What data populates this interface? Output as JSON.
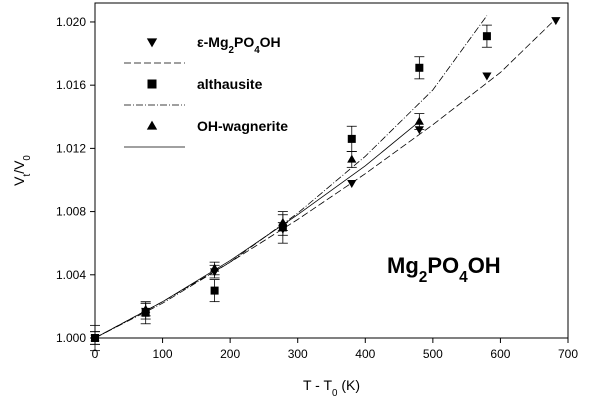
{
  "chart_data": {
    "type": "scatter",
    "xlabel": {
      "main": "T - T",
      "sub": "0",
      "tail": " (K)"
    },
    "ylabel": {
      "main": "V",
      "sub": "t",
      "tail": "/V",
      "sub2": "0"
    },
    "xlim": [
      0,
      700
    ],
    "ylim": [
      1.0,
      1.0212
    ],
    "x_ticks": [
      0,
      100,
      200,
      300,
      400,
      500,
      600,
      700
    ],
    "y_ticks": [
      1.0,
      1.004,
      1.008,
      1.012,
      1.016,
      1.02
    ],
    "y_tick_labels": [
      "1.000",
      "1.004",
      "1.008",
      "1.012",
      "1.016",
      "1.020"
    ],
    "grid": false,
    "legend_position": "top-left",
    "annotation": {
      "parts": [
        {
          "text": "Mg",
          "sub": false
        },
        {
          "text": "2",
          "sub": true
        },
        {
          "text": "PO",
          "sub": false
        },
        {
          "text": "4",
          "sub": true
        },
        {
          "text": "OH",
          "sub": false
        }
      ]
    },
    "series": [
      {
        "key": "epsilon",
        "legend_parts": [
          {
            "text": "ε-Mg",
            "sub": false
          },
          {
            "text": "2",
            "sub": true
          },
          {
            "text": "PO",
            "sub": false
          },
          {
            "text": "4",
            "sub": true
          },
          {
            "text": "OH",
            "sub": false
          }
        ],
        "marker": "triangle-down",
        "line_style": "longdash",
        "points": [
          {
            "x": 0,
            "y": 1.0,
            "err": 0.0008
          },
          {
            "x": 75,
            "y": 1.0017,
            "err": 0.0005
          },
          {
            "x": 177,
            "y": 1.0042,
            "err": 0.0004
          },
          {
            "x": 278,
            "y": 1.0069,
            "err": 0.0004
          },
          {
            "x": 380,
            "y": 1.0098,
            "err": 0.0
          },
          {
            "x": 480,
            "y": 1.0132,
            "err": 0.0
          },
          {
            "x": 580,
            "y": 1.0166,
            "err": 0.0
          },
          {
            "x": 682,
            "y": 1.0201,
            "err": 0.0
          }
        ],
        "fit": [
          [
            0,
            1.0
          ],
          [
            100,
            1.0023
          ],
          [
            200,
            1.0048
          ],
          [
            300,
            1.0075
          ],
          [
            400,
            1.0104
          ],
          [
            500,
            1.0135
          ],
          [
            600,
            1.0168
          ],
          [
            682,
            1.0202
          ]
        ]
      },
      {
        "key": "althausite",
        "legend_parts": [
          {
            "text": "althausite",
            "sub": false
          }
        ],
        "marker": "square",
        "line_style": "dashdot",
        "points": [
          {
            "x": 0,
            "y": 1.0,
            "err": 0.0004
          },
          {
            "x": 75,
            "y": 1.0016,
            "err": 0.0007
          },
          {
            "x": 177,
            "y": 1.003,
            "err": 0.0007
          },
          {
            "x": 278,
            "y": 1.007,
            "err": 0.001
          },
          {
            "x": 380,
            "y": 1.0126,
            "err": 0.0008
          },
          {
            "x": 480,
            "y": 1.0171,
            "err": 0.0007
          },
          {
            "x": 580,
            "y": 1.0191,
            "err": 0.0007
          }
        ],
        "fit": [
          [
            0,
            1.0
          ],
          [
            100,
            1.0022
          ],
          [
            200,
            1.0048
          ],
          [
            300,
            1.0079
          ],
          [
            400,
            1.0115
          ],
          [
            500,
            1.0157
          ],
          [
            580,
            1.0204
          ]
        ]
      },
      {
        "key": "ohwagnerite",
        "legend_parts": [
          {
            "text": "OH-wagnerite",
            "sub": false
          }
        ],
        "marker": "triangle-up",
        "line_style": "solid",
        "points": [
          {
            "x": 0,
            "y": 1.0,
            "err": 0.0004
          },
          {
            "x": 75,
            "y": 1.0018,
            "err": 0.0004
          },
          {
            "x": 177,
            "y": 1.0044,
            "err": 0.0004
          },
          {
            "x": 278,
            "y": 1.0073,
            "err": 0.0005
          },
          {
            "x": 380,
            "y": 1.0113,
            "err": 0.0005
          },
          {
            "x": 480,
            "y": 1.0137,
            "err": 0.0005
          }
        ],
        "fit": [
          [
            0,
            1.0
          ],
          [
            100,
            1.0023
          ],
          [
            200,
            1.0049
          ],
          [
            300,
            1.0078
          ],
          [
            400,
            1.0109
          ],
          [
            480,
            1.0137
          ]
        ]
      }
    ]
  }
}
